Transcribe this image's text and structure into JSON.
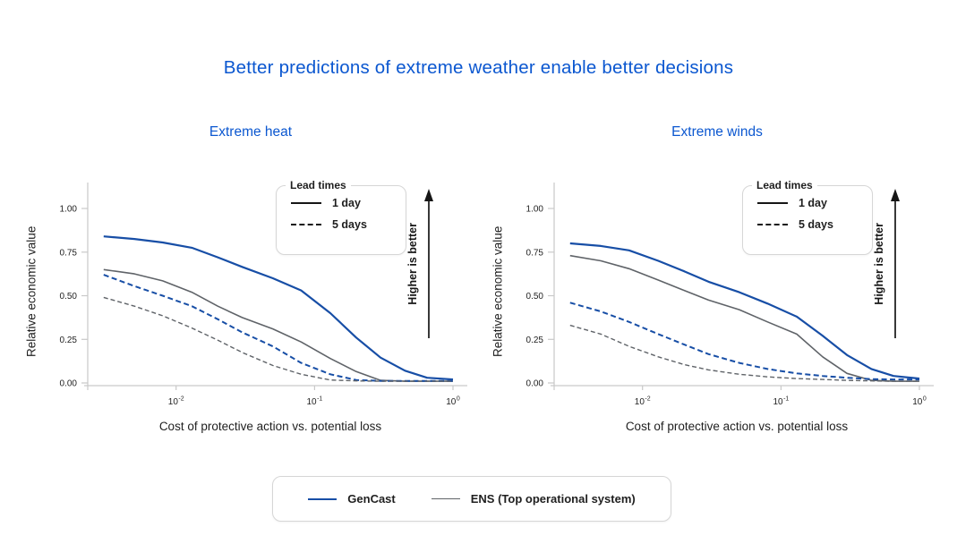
{
  "title": "Better predictions of extreme weather enable better decisions",
  "higher_is_better_label": "Higher is better",
  "lead_times_legend": {
    "title": "Lead times",
    "items": [
      {
        "label": "1 day",
        "style": "solid"
      },
      {
        "label": "5 days",
        "style": "dashed"
      }
    ]
  },
  "series_legend": {
    "items": [
      {
        "label": "GenCast",
        "color": "#174ea6",
        "style": "solid"
      },
      {
        "label": "ENS (Top operational system)",
        "color": "#5f6368",
        "style": "solid"
      }
    ]
  },
  "colors": {
    "heading_blue": "#0b57d0",
    "gencast_blue": "#174ea6",
    "ens_gray": "#5f6368",
    "axis_gray": "#c9c9c9",
    "text_dark": "#1f1f1f"
  },
  "chart_data": [
    {
      "type": "line",
      "title": "Extreme heat",
      "xlabel": "Cost of protective action vs. potential loss",
      "ylabel": "Relative economic value",
      "x_scale": "log",
      "xlim": [
        0.0023,
        1
      ],
      "ylim": [
        0,
        1.05
      ],
      "grid": false,
      "x_ticks": [
        {
          "value": 0.01,
          "base": "10",
          "exp": "-2"
        },
        {
          "value": 0.1,
          "base": "10",
          "exp": "-1"
        },
        {
          "value": 1,
          "base": "10",
          "exp": "0"
        }
      ],
      "y_ticks": [
        {
          "value": 0,
          "label": "0.00"
        },
        {
          "value": 0.25,
          "label": "0.25"
        },
        {
          "value": 0.5,
          "label": "0.50"
        },
        {
          "value": 0.75,
          "label": "0.75"
        },
        {
          "value": 1,
          "label": "1.00"
        }
      ],
      "x": [
        0.003,
        0.005,
        0.008,
        0.013,
        0.02,
        0.03,
        0.05,
        0.08,
        0.13,
        0.2,
        0.3,
        0.45,
        0.65,
        1.0
      ],
      "series": [
        {
          "name": "GenCast",
          "lead_time": "1 day",
          "color": "#174ea6",
          "dashed": false,
          "values": [
            0.84,
            0.825,
            0.805,
            0.775,
            0.72,
            0.665,
            0.6,
            0.53,
            0.4,
            0.26,
            0.145,
            0.07,
            0.03,
            0.02
          ]
        },
        {
          "name": "ENS",
          "lead_time": "1 day",
          "color": "#5f6368",
          "dashed": false,
          "values": [
            0.65,
            0.625,
            0.585,
            0.52,
            0.44,
            0.375,
            0.31,
            0.235,
            0.14,
            0.065,
            0.015,
            0.01,
            0.01,
            0.01
          ]
        },
        {
          "name": "GenCast",
          "lead_time": "5 days",
          "color": "#174ea6",
          "dashed": true,
          "values": [
            0.62,
            0.555,
            0.5,
            0.44,
            0.365,
            0.29,
            0.21,
            0.115,
            0.05,
            0.017,
            0.012,
            0.012,
            0.012,
            0.012
          ]
        },
        {
          "name": "ENS",
          "lead_time": "5 days",
          "color": "#5f6368",
          "dashed": true,
          "values": [
            0.49,
            0.44,
            0.385,
            0.315,
            0.245,
            0.175,
            0.1,
            0.05,
            0.017,
            0.012,
            0.01,
            0.01,
            0.01,
            0.01
          ]
        }
      ]
    },
    {
      "type": "line",
      "title": "Extreme winds",
      "xlabel": "Cost of protective action vs. potential loss",
      "ylabel": "Relative economic value",
      "x_scale": "log",
      "xlim": [
        0.0023,
        1
      ],
      "ylim": [
        0,
        1.05
      ],
      "grid": false,
      "x_ticks": [
        {
          "value": 0.01,
          "base": "10",
          "exp": "-2"
        },
        {
          "value": 0.1,
          "base": "10",
          "exp": "-1"
        },
        {
          "value": 1,
          "base": "10",
          "exp": "0"
        }
      ],
      "y_ticks": [
        {
          "value": 0,
          "label": "0.00"
        },
        {
          "value": 0.25,
          "label": "0.25"
        },
        {
          "value": 0.5,
          "label": "0.50"
        },
        {
          "value": 0.75,
          "label": "0.75"
        },
        {
          "value": 1,
          "label": "1.00"
        }
      ],
      "x": [
        0.003,
        0.005,
        0.008,
        0.013,
        0.02,
        0.03,
        0.05,
        0.08,
        0.13,
        0.2,
        0.3,
        0.45,
        0.65,
        1.0
      ],
      "series": [
        {
          "name": "GenCast",
          "lead_time": "1 day",
          "color": "#174ea6",
          "dashed": false,
          "values": [
            0.8,
            0.785,
            0.76,
            0.7,
            0.64,
            0.58,
            0.52,
            0.455,
            0.38,
            0.27,
            0.16,
            0.08,
            0.04,
            0.025
          ]
        },
        {
          "name": "ENS",
          "lead_time": "1 day",
          "color": "#5f6368",
          "dashed": false,
          "values": [
            0.73,
            0.7,
            0.655,
            0.59,
            0.53,
            0.475,
            0.42,
            0.35,
            0.28,
            0.15,
            0.055,
            0.015,
            0.01,
            0.01
          ]
        },
        {
          "name": "GenCast",
          "lead_time": "5 days",
          "color": "#174ea6",
          "dashed": true,
          "values": [
            0.46,
            0.41,
            0.35,
            0.28,
            0.22,
            0.165,
            0.115,
            0.08,
            0.055,
            0.04,
            0.03,
            0.022,
            0.02,
            0.02
          ]
        },
        {
          "name": "ENS",
          "lead_time": "5 days",
          "color": "#5f6368",
          "dashed": true,
          "values": [
            0.33,
            0.28,
            0.21,
            0.15,
            0.105,
            0.075,
            0.05,
            0.035,
            0.025,
            0.02,
            0.015,
            0.012,
            0.01,
            0.01
          ]
        }
      ]
    }
  ]
}
